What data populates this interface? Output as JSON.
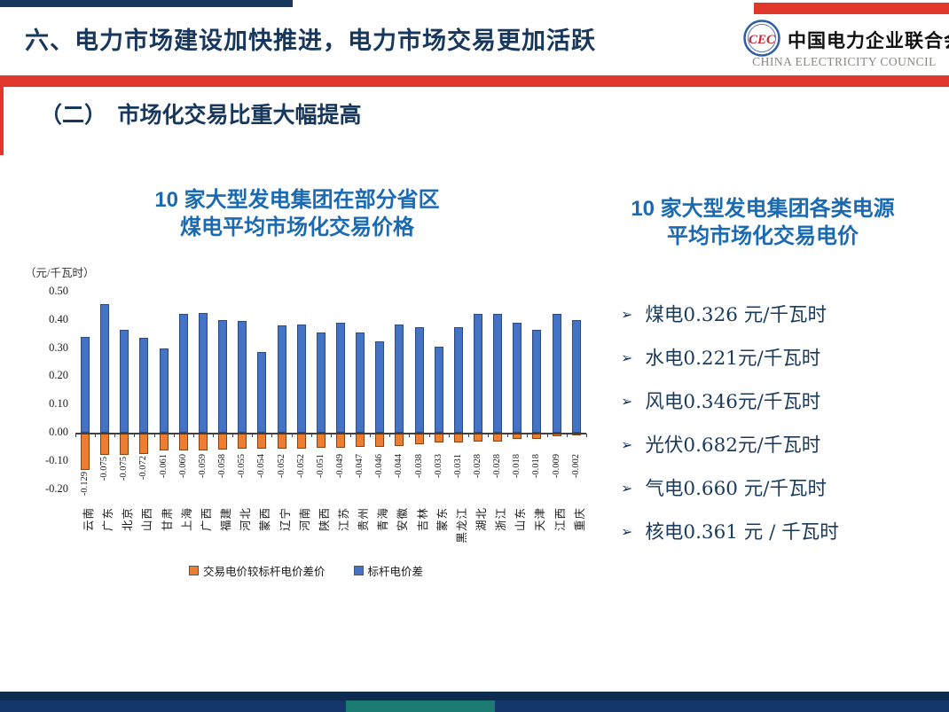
{
  "slide": {
    "title": "六、电力市场建设加快推进，电力市场交易更加活跃",
    "subtitle": "（二）　市场化交易比重大幅提高"
  },
  "logo": {
    "emblem": "CEC",
    "org_cn": "中国电力企业联合会",
    "org_en": "CHINA ELECTRICITY COUNCIL"
  },
  "left_chart_title": {
    "line1": "10 家大型发电集团在部分省区",
    "line2": "煤电平均市场化交易价格"
  },
  "right_panel": {
    "title_line1": "10 家大型发电集团各类电源",
    "title_line2": "平均市场化交易电价",
    "bullet_glyph": "➢",
    "bullets": [
      "煤电0.326 元/千瓦时",
      "水电0.221元/千瓦时",
      "风电0.346元/千瓦时",
      "光伏0.682元/千瓦时",
      "气电0.660 元/千瓦时",
      "核电0.361 元 / 千瓦时"
    ]
  },
  "chart_data": {
    "type": "bar",
    "title": "10 家大型发电集团在部分省区煤电平均市场化交易价格",
    "unit_label": "（元/千瓦时）",
    "ylim": [
      -0.2,
      0.5
    ],
    "yticks": [
      0.5,
      0.4,
      0.3,
      0.2,
      0.1,
      0,
      -0.1,
      -0.2
    ],
    "ytick_labels": [
      "0.50",
      "0.40",
      "0.30",
      "0.20",
      "0.10",
      "0.00",
      "-0.10",
      "-0.20"
    ],
    "grid": false,
    "legend_position": "bottom",
    "categories": [
      "云南",
      "广东",
      "北京",
      "山西",
      "甘肃",
      "上海",
      "广西",
      "福建",
      "河北",
      "蒙西",
      "辽宁",
      "河南",
      "陕西",
      "江苏",
      "贵州",
      "青海",
      "安徽",
      "吉林",
      "蒙东",
      "黑龙江",
      "湖北",
      "浙江",
      "山东",
      "天津",
      "江西",
      "重庆"
    ],
    "series": [
      {
        "name": "交易电价较标杆电价差价",
        "color": "#ED7D31",
        "border": "#8C4010",
        "values": [
          -0.129,
          -0.075,
          -0.075,
          -0.072,
          -0.061,
          -0.06,
          -0.059,
          -0.058,
          -0.055,
          -0.054,
          -0.052,
          -0.052,
          -0.051,
          -0.049,
          -0.047,
          -0.046,
          -0.044,
          -0.038,
          -0.033,
          -0.031,
          -0.028,
          -0.028,
          -0.018,
          -0.018,
          -0.009,
          -0.002
        ]
      },
      {
        "name": "标杆电价差",
        "color": "#4472C4",
        "border": "#2A4A86",
        "values": [
          0.34,
          0.455,
          0.365,
          0.335,
          0.3,
          0.42,
          0.425,
          0.4,
          0.395,
          0.285,
          0.38,
          0.385,
          0.355,
          0.39,
          0.355,
          0.325,
          0.385,
          0.375,
          0.305,
          0.375,
          0.42,
          0.42,
          0.39,
          0.365,
          0.42,
          0.4
        ]
      }
    ]
  },
  "colors": {
    "header_navy": "#17375D",
    "accent_red": "#E0362C",
    "chart_title_blue": "#1A6AB3",
    "bullet_navy": "#1A3A5C",
    "footer_navy_dark": "#0D2A4F",
    "footer_navy": "#14366B",
    "footer_teal": "#1B7B72"
  }
}
